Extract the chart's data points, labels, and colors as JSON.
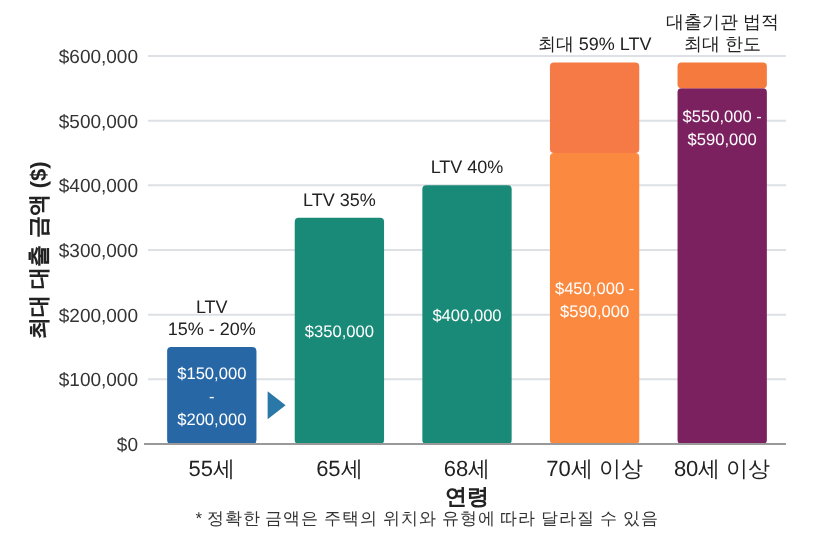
{
  "chart_data": {
    "type": "bar",
    "stacked": true,
    "xlabel": "연령",
    "ylabel": "최대 대출 금액 ($)",
    "categories": [
      "55세",
      "65세",
      "68세",
      "70세 이상",
      "80세 이상"
    ],
    "series": [
      {
        "colors": [
          "#2767a6",
          "#1a8a78",
          "#1a8a78",
          "#fb8a40",
          "#7b2160"
        ],
        "values": [
          150000,
          350000,
          400000,
          450000,
          550000
        ],
        "value_labels": [
          "$150,000\n-\n$200,000",
          "$350,000",
          "$400,000",
          "$450,000 -\n$590,000",
          "$550,000 -\n$590,000"
        ]
      },
      {
        "colors": [
          null,
          null,
          null,
          "#f57a45",
          "#f47a3e"
        ],
        "values": [
          null,
          null,
          null,
          140000,
          40000
        ]
      }
    ],
    "ylim": [
      0,
      600000
    ],
    "yticks": [
      {
        "value": 0,
        "label": "$0"
      },
      {
        "value": 100000,
        "label": "$100,000"
      },
      {
        "value": 200000,
        "label": "$200,000"
      },
      {
        "value": 300000,
        "label": "$300,000"
      },
      {
        "value": 400000,
        "label": "$400,000"
      },
      {
        "value": 500000,
        "label": "$500,000"
      },
      {
        "value": 600000,
        "label": "$600,000"
      }
    ],
    "grid": "y",
    "annotations": [
      {
        "text": "LTV\n15% - 20%",
        "x": "55세",
        "y": 150000
      },
      {
        "text": "LTV 35%",
        "x": "65세",
        "y": 350000
      },
      {
        "text": "LTV 40%",
        "x": "68세",
        "y": 400000
      },
      {
        "text": "최대 59% LTV",
        "x": "70세 이상",
        "y": 590000
      },
      {
        "text": "대출기관 법적\n최대 한도",
        "x": "80세 이상",
        "y": 590000
      },
      "* 정확한 금액은 주택의 위치와 유형에 따라 달라질 수 있음"
    ]
  }
}
